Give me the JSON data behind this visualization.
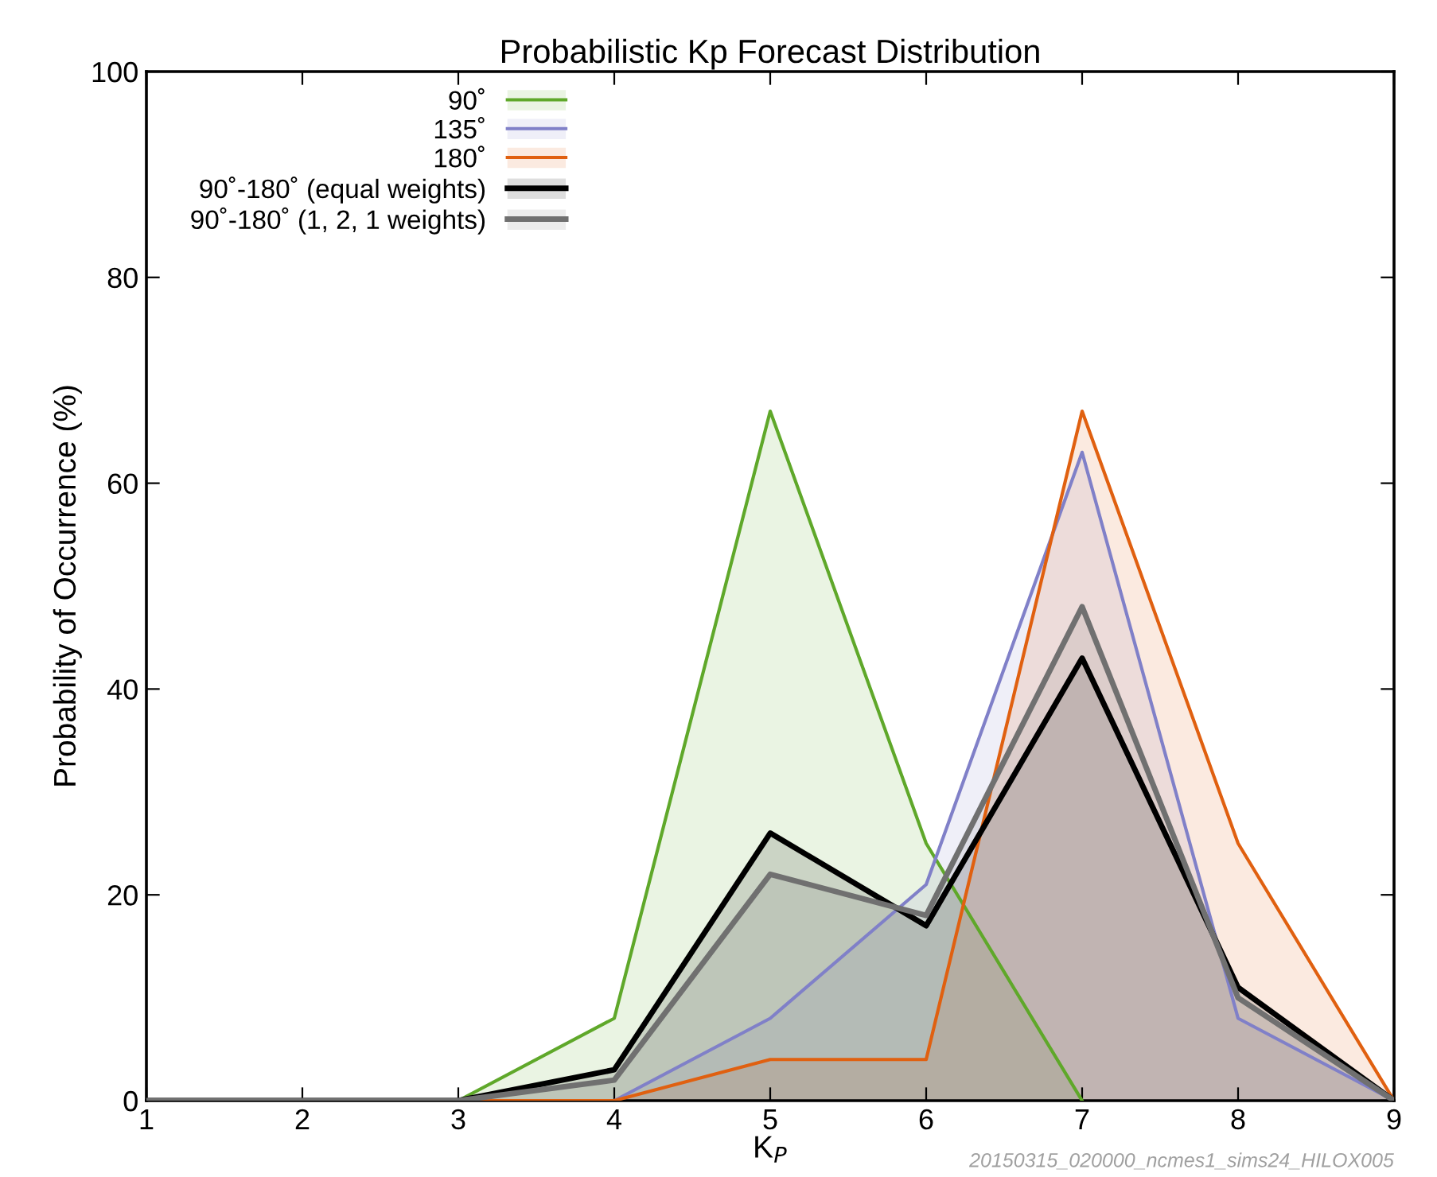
{
  "chart_data": {
    "type": "area",
    "title": "Probabilistic Kp Forecast Distribution",
    "xlabel": "K$_{P}$",
    "ylabel": "Probability of Occurrence (%)",
    "x": [
      1,
      2,
      3,
      4,
      5,
      6,
      7,
      8,
      9
    ],
    "series": [
      {
        "name": "90˚",
        "color": "#5fa82a",
        "values": [
          0,
          0,
          0,
          8,
          67,
          25,
          0,
          null,
          null
        ]
      },
      {
        "name": "135˚",
        "color": "#8080c8",
        "values": [
          0,
          0,
          0,
          0,
          8,
          21,
          63,
          8,
          0
        ]
      },
      {
        "name": "180˚",
        "color": "#e06010",
        "values": [
          0,
          0,
          0,
          0,
          4,
          4,
          67,
          25,
          0
        ]
      },
      {
        "name": "90˚-180˚ (equal weights)",
        "color": "#000000",
        "values": [
          0,
          0,
          0,
          3,
          26,
          17,
          43,
          11,
          0
        ]
      },
      {
        "name": "90˚-180˚ (1, 2, 1 weights)",
        "color": "#707070",
        "values": [
          0,
          0,
          0,
          2,
          22,
          18,
          48,
          10,
          0
        ]
      }
    ],
    "xlim": [
      1,
      9
    ],
    "ylim": [
      0,
      100
    ],
    "xticks": [
      1,
      2,
      3,
      4,
      5,
      6,
      7,
      8,
      9
    ],
    "yticks": [
      0,
      20,
      40,
      60,
      80,
      100
    ],
    "grid": false,
    "legend": "top left",
    "annotations": [
      "20150315_020000_ncmes1_sims24_HILOX005"
    ]
  }
}
